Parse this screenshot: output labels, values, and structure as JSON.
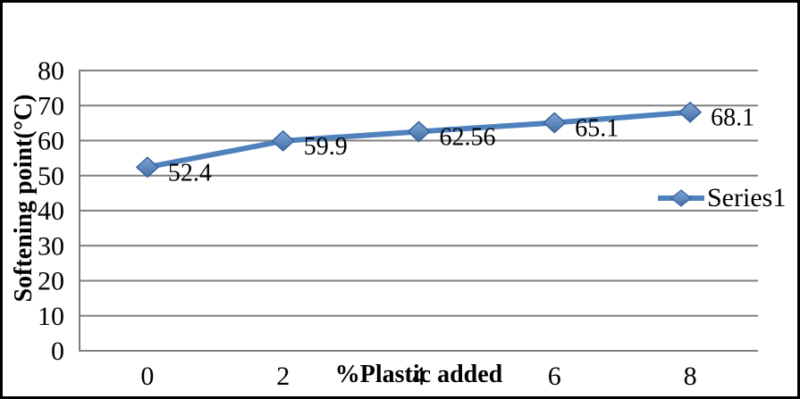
{
  "chart_data": {
    "type": "line",
    "categories": [
      "0",
      "2",
      "4",
      "6",
      "8"
    ],
    "series": [
      {
        "name": "Series1",
        "values": [
          52.4,
          59.9,
          62.56,
          65.1,
          68.1
        ],
        "labels": [
          "52.4",
          "59.9",
          "62.56",
          "65.1",
          "68.1"
        ]
      }
    ],
    "title": "",
    "xlabel": "%Plastic added",
    "ylabel": "Softening point(°C)",
    "ylim": [
      0,
      80
    ],
    "y_ticks": [
      0,
      10,
      20,
      30,
      40,
      50,
      60,
      70,
      80
    ],
    "grid": true,
    "legend_position": "right-middle",
    "colors": {
      "series_line": "#4F81BD",
      "marker_fill_top": "#7FA5D6",
      "marker_fill_bottom": "#4470A6",
      "marker_edge": "#3A639C",
      "gridline": "#808080",
      "axis_line": "#7F7F7F",
      "text": "#000000",
      "background": "#FFFFFF",
      "outer_border": "#000000"
    }
  }
}
